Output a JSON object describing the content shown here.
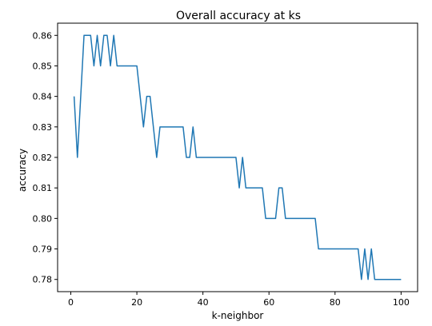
{
  "chart_data": {
    "type": "line",
    "title": "Overall accuracy at ks",
    "xlabel": "k-neighbor",
    "ylabel": "accuracy",
    "xlim": [
      -4,
      105
    ],
    "ylim": [
      0.776,
      0.864
    ],
    "x_ticks": [
      0,
      20,
      40,
      60,
      80,
      100
    ],
    "x_tick_labels": [
      "0",
      "20",
      "40",
      "60",
      "80",
      "100"
    ],
    "y_ticks": [
      0.78,
      0.79,
      0.8,
      0.81,
      0.82,
      0.83,
      0.84,
      0.85,
      0.86
    ],
    "y_tick_labels": [
      "0.78",
      "0.79",
      "0.80",
      "0.81",
      "0.82",
      "0.83",
      "0.84",
      "0.85",
      "0.86"
    ],
    "grid": false,
    "legend": "none",
    "series": [
      {
        "color": "#1f77b4",
        "x": [
          1,
          2,
          3,
          4,
          5,
          6,
          7,
          8,
          9,
          10,
          11,
          12,
          13,
          14,
          15,
          16,
          17,
          18,
          19,
          20,
          21,
          22,
          23,
          24,
          25,
          26,
          27,
          28,
          29,
          30,
          31,
          32,
          33,
          34,
          35,
          36,
          37,
          38,
          39,
          40,
          41,
          42,
          43,
          44,
          45,
          46,
          47,
          48,
          49,
          50,
          51,
          52,
          53,
          54,
          55,
          56,
          57,
          58,
          59,
          60,
          61,
          62,
          63,
          64,
          65,
          66,
          67,
          68,
          69,
          70,
          71,
          72,
          73,
          74,
          75,
          76,
          77,
          78,
          79,
          80,
          81,
          82,
          83,
          84,
          85,
          86,
          87,
          88,
          89,
          90,
          91,
          92,
          93,
          94,
          95,
          96,
          97,
          98,
          99,
          100
        ],
        "values": [
          0.84,
          0.82,
          0.84,
          0.86,
          0.86,
          0.86,
          0.85,
          0.86,
          0.85,
          0.86,
          0.86,
          0.85,
          0.86,
          0.85,
          0.85,
          0.85,
          0.85,
          0.85,
          0.85,
          0.85,
          0.84,
          0.83,
          0.84,
          0.84,
          0.83,
          0.82,
          0.83,
          0.83,
          0.83,
          0.83,
          0.83,
          0.83,
          0.83,
          0.83,
          0.82,
          0.82,
          0.83,
          0.82,
          0.82,
          0.82,
          0.82,
          0.82,
          0.82,
          0.82,
          0.82,
          0.82,
          0.82,
          0.82,
          0.82,
          0.82,
          0.81,
          0.82,
          0.81,
          0.81,
          0.81,
          0.81,
          0.81,
          0.81,
          0.8,
          0.8,
          0.8,
          0.8,
          0.81,
          0.81,
          0.8,
          0.8,
          0.8,
          0.8,
          0.8,
          0.8,
          0.8,
          0.8,
          0.8,
          0.8,
          0.79,
          0.79,
          0.79,
          0.79,
          0.79,
          0.79,
          0.79,
          0.79,
          0.79,
          0.79,
          0.79,
          0.79,
          0.79,
          0.78,
          0.79,
          0.78,
          0.79,
          0.78,
          0.78,
          0.78,
          0.78,
          0.78,
          0.78,
          0.78,
          0.78,
          0.78
        ]
      }
    ]
  }
}
